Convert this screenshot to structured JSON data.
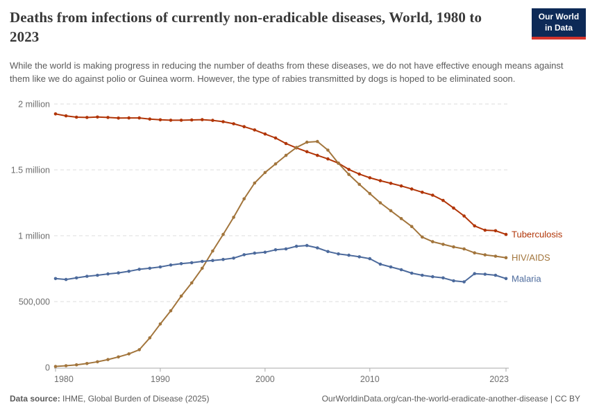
{
  "header": {
    "title": "Deaths from infections of currently non-eradicable diseases, World, 1980 to 2023",
    "logo": {
      "line1": "Our World",
      "line2": "in Data"
    }
  },
  "subtitle": "While the world is making progress in reducing the number of deaths from these diseases, we do not have effective enough means against them like we do against polio or Guinea worm. However, the type of rabies transmitted by dogs is hoped to be eliminated soon.",
  "chart_data": {
    "type": "line",
    "title": "Deaths from infections of currently non-eradicable diseases",
    "entity": "World",
    "x_label": "",
    "y_label": "",
    "xlim": [
      1980,
      2023
    ],
    "ylim": [
      0,
      2000000
    ],
    "grid": "horizontal-dashed",
    "legend_position": "right-end-labels",
    "markers": true,
    "x": [
      1980,
      1981,
      1982,
      1983,
      1984,
      1985,
      1986,
      1987,
      1988,
      1989,
      1990,
      1991,
      1992,
      1993,
      1994,
      1995,
      1996,
      1997,
      1998,
      1999,
      2000,
      2001,
      2002,
      2003,
      2004,
      2005,
      2006,
      2007,
      2008,
      2009,
      2010,
      2011,
      2012,
      2013,
      2014,
      2015,
      2016,
      2017,
      2018,
      2019,
      2020,
      2021,
      2022,
      2023
    ],
    "x_ticks": [
      1980,
      1990,
      2000,
      2010,
      2023
    ],
    "y_ticks": [
      {
        "value": 0,
        "label": "0"
      },
      {
        "value": 500000,
        "label": "500,000"
      },
      {
        "value": 1000000,
        "label": "1 million"
      },
      {
        "value": 1500000,
        "label": "1.5 million"
      },
      {
        "value": 2000000,
        "label": "2 million"
      }
    ],
    "series": [
      {
        "name": "Tuberculosis",
        "color": "#b13507",
        "values": [
          1925000,
          1910000,
          1900000,
          1898000,
          1901000,
          1898000,
          1893000,
          1894000,
          1894000,
          1886000,
          1880000,
          1877000,
          1877000,
          1879000,
          1881000,
          1876000,
          1866000,
          1850000,
          1828000,
          1803000,
          1772000,
          1742000,
          1700000,
          1667000,
          1638000,
          1610000,
          1583000,
          1551000,
          1503000,
          1468000,
          1440000,
          1418000,
          1398000,
          1378000,
          1355000,
          1330000,
          1308000,
          1268000,
          1210000,
          1150000,
          1075000,
          1042000,
          1038000,
          1010000
        ]
      },
      {
        "name": "HIV/AIDS",
        "color": "#a2753c",
        "values": [
          8000,
          13000,
          20000,
          30000,
          43000,
          60000,
          80000,
          103000,
          135000,
          225000,
          330000,
          430000,
          542000,
          642000,
          753000,
          884000,
          1010000,
          1140000,
          1280000,
          1400000,
          1480000,
          1545000,
          1610000,
          1670000,
          1710000,
          1715000,
          1650000,
          1550000,
          1465000,
          1390000,
          1320000,
          1250000,
          1190000,
          1130000,
          1070000,
          990000,
          955000,
          935000,
          915000,
          900000,
          870000,
          855000,
          845000,
          833000
        ]
      },
      {
        "name": "Malaria",
        "color": "#4c6a9c",
        "values": [
          675000,
          668000,
          680000,
          692000,
          700000,
          710000,
          718000,
          730000,
          745000,
          753000,
          763000,
          778000,
          788000,
          795000,
          805000,
          812000,
          820000,
          830000,
          856000,
          868000,
          875000,
          893000,
          900000,
          920000,
          926000,
          908000,
          880000,
          862000,
          852000,
          840000,
          826000,
          784000,
          763000,
          742000,
          716000,
          700000,
          689000,
          680000,
          658000,
          650000,
          712000,
          708000,
          700000,
          675000
        ]
      }
    ]
  },
  "footer": {
    "source_label": "Data source:",
    "source_text": " IHME, Global Burden of Disease (2025)",
    "right_text": "OurWorldinData.org/can-the-world-eradicate-another-disease | CC BY"
  },
  "style": {
    "grid_color": "#dcdcdc",
    "axis_color": "#a9a9a9",
    "tick_label_color": "#6e6e6e"
  }
}
